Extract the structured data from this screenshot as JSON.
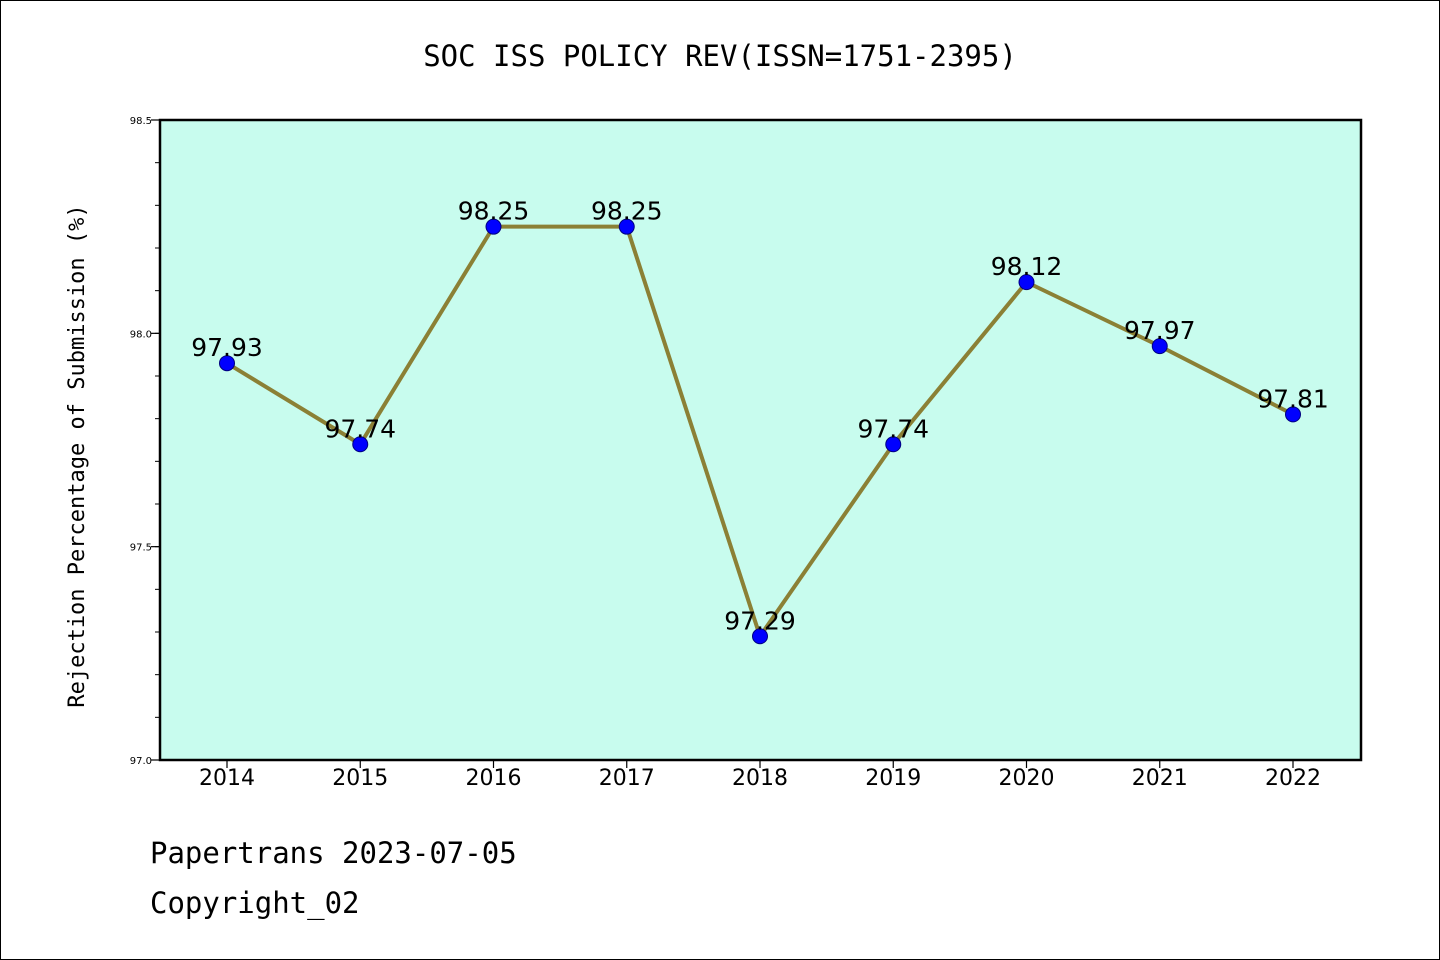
{
  "chart_data": {
    "type": "line",
    "title": "SOC ISS POLICY REV(ISSN=1751-2395)",
    "xlabel": "",
    "ylabel": "Rejection Percentage of Submission (%)",
    "categories": [
      "2014",
      "2015",
      "2016",
      "2017",
      "2018",
      "2019",
      "2020",
      "2021",
      "2022"
    ],
    "series": [
      {
        "name": "Rejection Percentage",
        "values": [
          97.93,
          97.74,
          98.25,
          98.25,
          97.29,
          97.74,
          98.12,
          97.97,
          97.81
        ],
        "labels": [
          "97.93",
          "97.74",
          "98.25",
          "98.25",
          "97.29",
          "97.74",
          "98.12",
          "97.97",
          "97.81"
        ]
      }
    ],
    "ylim": [
      97.0,
      98.5
    ],
    "yticks": [
      97.0,
      97.5,
      98.0,
      98.5
    ],
    "ytick_labels": [
      "97.0",
      "97.5",
      "98.0",
      "98.5"
    ],
    "grid": false,
    "colors": {
      "background": "#c8fcee",
      "line": "#8b8035",
      "marker": "#0000ff",
      "axes": "#000000"
    }
  },
  "footer": {
    "line1": "Papertrans 2023-07-05",
    "line2": "Copyright_02"
  }
}
